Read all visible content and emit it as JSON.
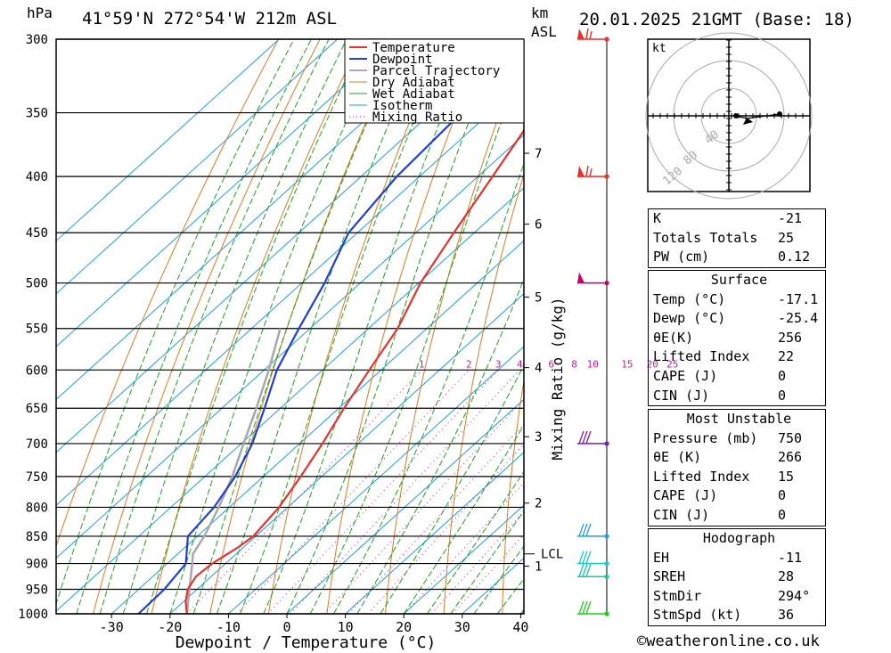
{
  "header": {
    "pressure_unit": "hPa",
    "location": "41°59'N  272°54'W  212m  ASL",
    "km_label": "km",
    "asl_label": "ASL",
    "datetime": "20.01.2025  21GMT  (Base: 18)"
  },
  "footer": {
    "copyright": "©weatheronline.co.uk"
  },
  "colors": {
    "temperature": "#e8312a",
    "dewpoint": "#1f3fd8",
    "parcel": "#a8a8a8",
    "dry_adiabat": "#e07a1e",
    "wet_adiabat": "#1aa51a",
    "isotherm": "#1aa0e8",
    "mixing_ratio": "#c81aa0"
  },
  "chart_data": {
    "type": "line",
    "title": "",
    "xlabel": "Dewpoint / Temperature (°C)",
    "ylabel": "hPa",
    "y2label": "Mixing Ratio (g/kg)",
    "y_scale": "log",
    "ylim": [
      1000,
      300
    ],
    "xlim_at_1000": [
      -40,
      40
    ],
    "x_ticks": [
      -30,
      -20,
      -10,
      0,
      10,
      20,
      30,
      40
    ],
    "pressure_levels": [
      300,
      350,
      400,
      450,
      500,
      550,
      600,
      650,
      700,
      750,
      800,
      850,
      900,
      950,
      1000
    ],
    "km_ticks": [
      {
        "label": "7",
        "p": 381
      },
      {
        "label": "6",
        "p": 442
      },
      {
        "label": "5",
        "p": 515
      },
      {
        "label": "4",
        "p": 597
      },
      {
        "label": "3",
        "p": 690
      },
      {
        "label": "2",
        "p": 793
      },
      {
        "label": "1",
        "p": 905
      }
    ],
    "lcl": {
      "label": "LCL",
      "p": 882
    },
    "mixing_ratio_labels": [
      "1",
      "2",
      "3",
      "4",
      "6",
      "8",
      "10",
      "15",
      "20",
      "25"
    ],
    "mixing_ratio_label_pressure": 600,
    "legend": {
      "placement": "top-right",
      "entries": [
        "Temperature",
        "Dewpoint",
        "Parcel Trajectory",
        "Dry Adiabat",
        "Wet Adiabat",
        "Isotherm",
        "Mixing Ratio"
      ]
    },
    "series": [
      {
        "name": "Temperature",
        "points": [
          {
            "p": 1000,
            "t": -17.1
          },
          {
            "p": 975,
            "t": -19.6
          },
          {
            "p": 950,
            "t": -21.6
          },
          {
            "p": 925,
            "t": -22.6
          },
          {
            "p": 900,
            "t": -22.3
          },
          {
            "p": 870,
            "t": -20.9
          },
          {
            "p": 850,
            "t": -20.4
          },
          {
            "p": 800,
            "t": -21.5
          },
          {
            "p": 750,
            "t": -23.6
          },
          {
            "p": 700,
            "t": -26.1
          },
          {
            "p": 650,
            "t": -29.1
          },
          {
            "p": 600,
            "t": -32.0
          },
          {
            "p": 550,
            "t": -35.0
          },
          {
            "p": 500,
            "t": -39.7
          },
          {
            "p": 450,
            "t": -43.5
          },
          {
            "p": 400,
            "t": -47.5
          },
          {
            "p": 350,
            "t": -52.1
          },
          {
            "p": 300,
            "t": -52.8
          }
        ]
      },
      {
        "name": "Dewpoint",
        "points": [
          {
            "p": 1000,
            "t": -25.4
          },
          {
            "p": 950,
            "t": -25.6
          },
          {
            "p": 900,
            "t": -26.8
          },
          {
            "p": 850,
            "t": -31.6
          },
          {
            "p": 800,
            "t": -32.6
          },
          {
            "p": 750,
            "t": -34.8
          },
          {
            "p": 700,
            "t": -38.1
          },
          {
            "p": 650,
            "t": -42.7
          },
          {
            "p": 600,
            "t": -47.8
          },
          {
            "p": 550,
            "t": -51.9
          },
          {
            "p": 500,
            "t": -56.1
          },
          {
            "p": 450,
            "t": -61.5
          },
          {
            "p": 400,
            "t": -63.9
          },
          {
            "p": 350,
            "t": -64.9
          },
          {
            "p": 300,
            "t": -67.9
          }
        ]
      },
      {
        "name": "Parcel Trajectory",
        "points": [
          {
            "p": 1000,
            "t": -17.1
          },
          {
            "p": 950,
            "t": -21.3
          },
          {
            "p": 900,
            "t": -25.7
          },
          {
            "p": 882,
            "t": -27.4
          },
          {
            "p": 850,
            "t": -28.8
          },
          {
            "p": 800,
            "t": -31.8
          },
          {
            "p": 750,
            "t": -35.3
          },
          {
            "p": 700,
            "t": -39.6
          },
          {
            "p": 650,
            "t": -44.1
          },
          {
            "p": 600,
            "t": -49.2
          },
          {
            "p": 550,
            "t": -55.1
          }
        ]
      }
    ],
    "wind_barbs": [
      {
        "p": 300,
        "color": "#e8312a"
      },
      {
        "p": 400,
        "color": "#e8312a"
      },
      {
        "p": 500,
        "color": "#c8006e"
      },
      {
        "p": 700,
        "color": "#7a1ab4"
      },
      {
        "p": 850,
        "color": "#1aa0e8"
      },
      {
        "p": 900,
        "color": "#1ac8c8"
      },
      {
        "p": 925,
        "color": "#1ac8a0"
      },
      {
        "p": 1000,
        "color": "#1ad21a"
      }
    ]
  },
  "hodograph": {
    "unit_label": "kt",
    "ring_labels": [
      "40",
      "80",
      "120"
    ]
  },
  "indices": {
    "top": [
      {
        "label": "K",
        "value": "-21"
      },
      {
        "label": "Totals Totals",
        "value": "25"
      },
      {
        "label": "PW (cm)",
        "value": "0.12"
      }
    ],
    "surface": {
      "title": "Surface",
      "rows": [
        {
          "label": "Temp (°C)",
          "value": "-17.1"
        },
        {
          "label": "Dewp (°C)",
          "value": "-25.4"
        },
        {
          "label": "θE(K)",
          "value": "256"
        },
        {
          "label": "Lifted Index",
          "value": "22"
        },
        {
          "label": "CAPE (J)",
          "value": "0"
        },
        {
          "label": "CIN (J)",
          "value": "0"
        }
      ]
    },
    "most_unstable": {
      "title": "Most Unstable",
      "rows": [
        {
          "label": "Pressure (mb)",
          "value": "750"
        },
        {
          "label": "θE (K)",
          "value": "266"
        },
        {
          "label": "Lifted Index",
          "value": "15"
        },
        {
          "label": "CAPE (J)",
          "value": "0"
        },
        {
          "label": "CIN (J)",
          "value": "0"
        }
      ]
    },
    "hodograph_box": {
      "title": "Hodograph",
      "rows": [
        {
          "label": "EH",
          "value": "-11"
        },
        {
          "label": "SREH",
          "value": "28"
        },
        {
          "label": "StmDir",
          "value": "294°"
        },
        {
          "label": "StmSpd (kt)",
          "value": "36"
        }
      ]
    }
  }
}
